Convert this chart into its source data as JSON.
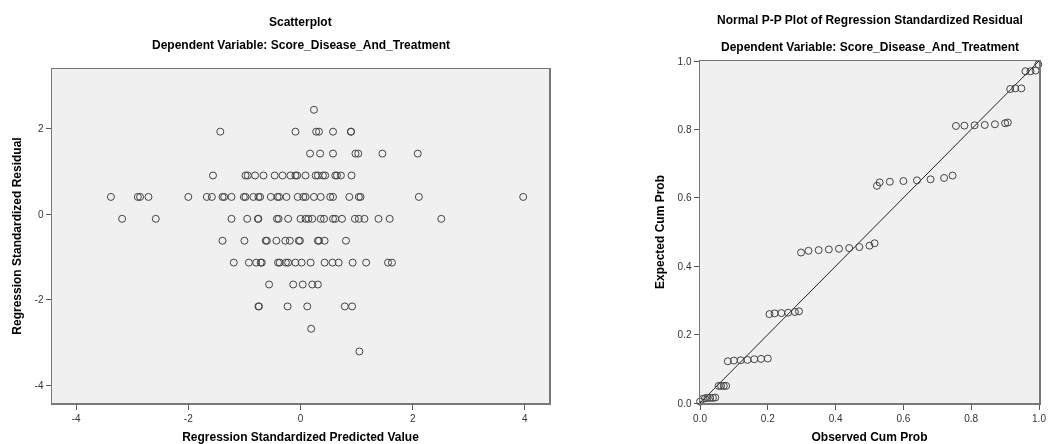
{
  "chart_data": [
    {
      "type": "scatter",
      "title": "Scatterplot",
      "subtitle": "Dependent Variable: Score_Disease_And_Treatment",
      "xlabel": "Regression Standardized Predicted Value",
      "ylabel": "Regression Standardized Residual",
      "xlim": [
        -4.43,
        4.43
      ],
      "ylim": [
        -4.4,
        3.38
      ],
      "xticks": [
        -4,
        -2,
        0,
        2,
        4
      ],
      "yticks": [
        -4,
        -2,
        0,
        2
      ],
      "marker": "circle",
      "series": [
        {
          "color": "#444444",
          "x": [
            0.24,
            -1.43,
            -0.09,
            0.28,
            0.33,
            0.58,
            0.9,
            0.9,
            0.17,
            0.35,
            0.58,
            0.98,
            1.03,
            1.46,
            2.09,
            -1.56,
            -0.98,
            -0.94,
            -0.81,
            -0.66,
            -0.46,
            -0.32,
            -0.18,
            -0.09,
            -0.06,
            0.09,
            0.27,
            0.31,
            0.4,
            0.44,
            0.62,
            0.65,
            0.72,
            0.91,
            -3.38,
            -2.9,
            -2.86,
            -2.71,
            -2.0,
            -1.67,
            -1.58,
            -1.39,
            -1.36,
            -1.23,
            -1.01,
            -0.98,
            -0.84,
            -0.75,
            -0.72,
            -0.53,
            -0.41,
            -0.38,
            -0.25,
            -0.05,
            0.05,
            0.09,
            0.24,
            0.36,
            0.53,
            0.58,
            0.87,
            1.04,
            1.07,
            2.11,
            3.97,
            -3.18,
            -2.58,
            -1.23,
            -0.95,
            -0.76,
            -0.75,
            -0.42,
            -0.39,
            -0.22,
            0.0,
            0.09,
            0.14,
            0.21,
            0.36,
            0.42,
            0.58,
            0.62,
            0.74,
            0.97,
            1.04,
            1.14,
            1.39,
            1.59,
            2.51,
            -1.39,
            -1.0,
            -0.62,
            -0.6,
            -0.43,
            -0.27,
            -0.19,
            -0.03,
            -0.01,
            0.31,
            0.33,
            0.43,
            0.81,
            -1.19,
            -0.92,
            -0.79,
            -0.71,
            -0.69,
            -0.4,
            -0.37,
            -0.26,
            -0.22,
            -0.09,
            0.02,
            0.18,
            0.43,
            0.57,
            0.68,
            0.93,
            1.17,
            1.56,
            1.63,
            -0.56,
            -0.13,
            0.04,
            0.21,
            0.31,
            -0.75,
            -0.74,
            -0.23,
            0.12,
            0.79,
            0.92,
            0.19,
            1.05
          ],
          "values": [
            2.43,
            1.92,
            1.92,
            1.92,
            1.92,
            1.92,
            1.92,
            1.92,
            1.41,
            1.41,
            1.41,
            1.41,
            1.41,
            1.41,
            1.41,
            0.9,
            0.9,
            0.9,
            0.9,
            0.9,
            0.9,
            0.9,
            0.9,
            0.9,
            0.9,
            0.9,
            0.9,
            0.9,
            0.9,
            0.9,
            0.9,
            0.9,
            0.9,
            0.9,
            0.4,
            0.4,
            0.4,
            0.4,
            0.4,
            0.4,
            0.4,
            0.4,
            0.4,
            0.4,
            0.4,
            0.4,
            0.4,
            0.4,
            0.4,
            0.4,
            0.4,
            0.4,
            0.4,
            0.4,
            0.4,
            0.4,
            0.4,
            0.4,
            0.4,
            0.4,
            0.4,
            0.4,
            0.4,
            0.4,
            0.4,
            -0.11,
            -0.11,
            -0.11,
            -0.11,
            -0.11,
            -0.11,
            -0.11,
            -0.11,
            -0.11,
            -0.11,
            -0.11,
            -0.11,
            -0.11,
            -0.11,
            -0.11,
            -0.11,
            -0.11,
            -0.11,
            -0.11,
            -0.11,
            -0.11,
            -0.11,
            -0.11,
            -0.11,
            -0.62,
            -0.62,
            -0.62,
            -0.62,
            -0.62,
            -0.62,
            -0.62,
            -0.62,
            -0.62,
            -0.62,
            -0.62,
            -0.62,
            -0.62,
            -1.13,
            -1.13,
            -1.13,
            -1.13,
            -1.13,
            -1.13,
            -1.13,
            -1.13,
            -1.13,
            -1.13,
            -1.13,
            -1.13,
            -1.13,
            -1.13,
            -1.13,
            -1.13,
            -1.13,
            -1.13,
            -1.13,
            -1.64,
            -1.64,
            -1.64,
            -1.64,
            -1.64,
            -2.15,
            -2.15,
            -2.15,
            -2.15,
            -2.15,
            -2.15,
            -2.67,
            -3.2
          ]
        }
      ]
    },
    {
      "type": "scatter",
      "title": "Normal P-P Plot of Regression Standardized Residual",
      "subtitle": "Dependent Variable: Score_Disease_And_Treatment",
      "xlabel": "Observed Cum Prob",
      "ylabel": "Expected Cum Prob",
      "xlim": [
        0,
        1
      ],
      "ylim": [
        0,
        1
      ],
      "xticks": [
        {
          "value": 0,
          "label": "0.0"
        },
        0.2,
        0.4,
        0.6,
        0.8,
        {
          "value": 1,
          "label": "1.0"
        }
      ],
      "yticks": [
        {
          "value": 0,
          "label": "0.0"
        },
        0.2,
        0.4,
        0.6,
        0.8,
        {
          "value": 1,
          "label": "1.0"
        }
      ],
      "marker": "circle",
      "series": [
        {
          "color": "#444444",
          "x": [
            0.0,
            0.008,
            0.015,
            0.022,
            0.03,
            0.038,
            0.045,
            0.055,
            0.062,
            0.07,
            0.077,
            0.082,
            0.1,
            0.12,
            0.14,
            0.16,
            0.18,
            0.2,
            0.205,
            0.22,
            0.24,
            0.26,
            0.28,
            0.292,
            0.298,
            0.32,
            0.35,
            0.38,
            0.41,
            0.44,
            0.47,
            0.5,
            0.515,
            0.522,
            0.53,
            0.56,
            0.6,
            0.64,
            0.68,
            0.72,
            0.745,
            0.755,
            0.78,
            0.81,
            0.84,
            0.87,
            0.9,
            0.908,
            0.915,
            0.93,
            0.948,
            0.96,
            0.975,
            0.99,
            0.998
          ],
          "values": [
            0.004,
            0.012,
            0.014,
            0.015,
            0.015,
            0.015,
            0.016,
            0.05,
            0.05,
            0.05,
            0.05,
            0.122,
            0.124,
            0.125,
            0.126,
            0.128,
            0.129,
            0.13,
            0.26,
            0.262,
            0.263,
            0.264,
            0.266,
            0.268,
            0.44,
            0.445,
            0.447,
            0.449,
            0.451,
            0.453,
            0.456,
            0.46,
            0.467,
            0.635,
            0.645,
            0.647,
            0.649,
            0.651,
            0.654,
            0.658,
            0.665,
            0.81,
            0.811,
            0.812,
            0.813,
            0.815,
            0.818,
            0.82,
            0.918,
            0.92,
            0.92,
            0.97,
            0.97,
            0.972,
            0.99
          ]
        },
        {
          "type": "line",
          "color": "#222222",
          "marker": "none",
          "x": [
            0,
            1
          ],
          "values": [
            0,
            1
          ]
        }
      ]
    }
  ]
}
